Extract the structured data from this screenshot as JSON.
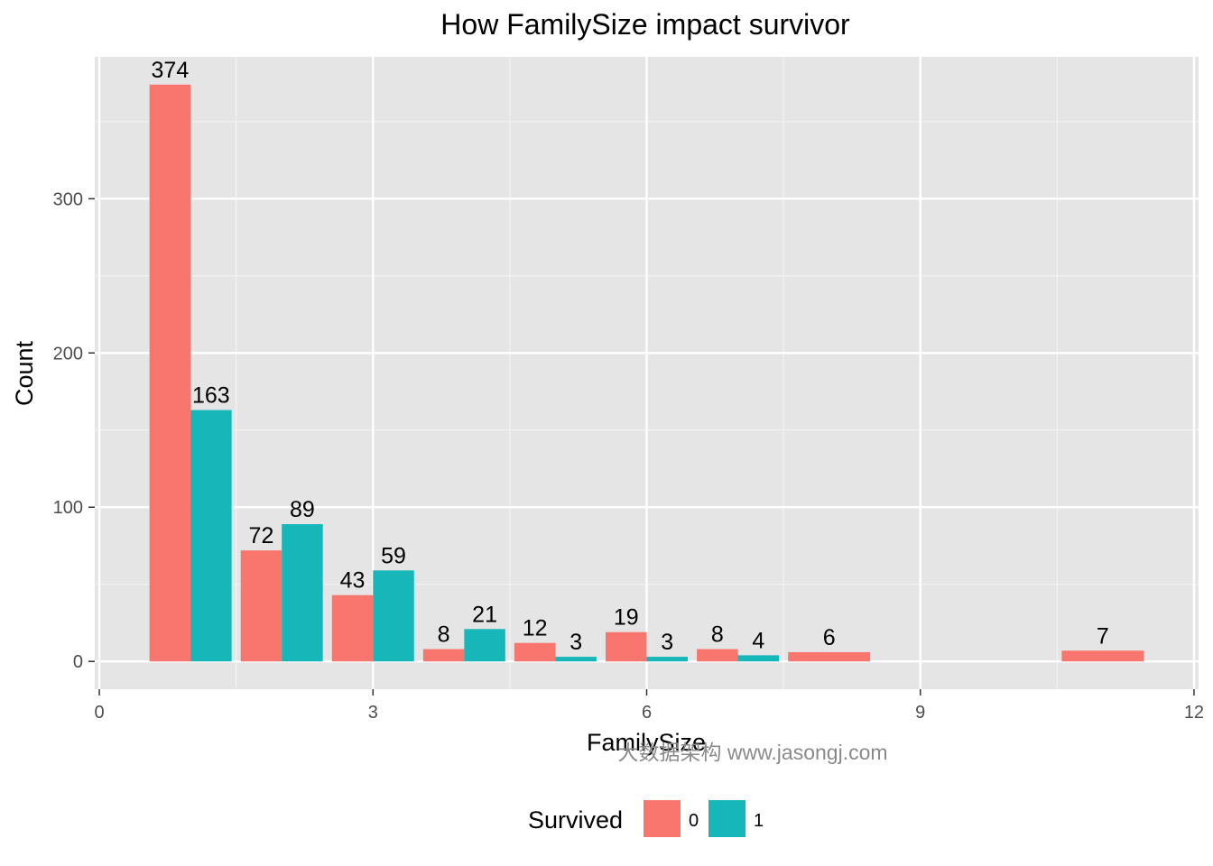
{
  "chart_data": {
    "type": "bar",
    "title": "How FamilySize impact survivor",
    "xlabel": "FamilySize",
    "ylabel": "Count",
    "xlim": [
      -0.05,
      12.05
    ],
    "ylim": [
      -18,
      392
    ],
    "x_ticks": [
      0,
      3,
      6,
      9,
      12
    ],
    "x_tick_labels": [
      "0",
      "3",
      "6",
      "9",
      "12"
    ],
    "y_ticks": [
      0,
      100,
      200,
      300
    ],
    "y_tick_labels": [
      "0",
      "100",
      "200",
      "300"
    ],
    "grid": true,
    "legend_position": "bottom",
    "legend_title": "Survived",
    "series": [
      {
        "name": "0",
        "color": "#F8766D",
        "points": [
          {
            "x": 1,
            "value": 374,
            "label": "374"
          },
          {
            "x": 2,
            "value": 72,
            "label": "72"
          },
          {
            "x": 3,
            "value": 43,
            "label": "43"
          },
          {
            "x": 4,
            "value": 8,
            "label": "8"
          },
          {
            "x": 5,
            "value": 12,
            "label": "12"
          },
          {
            "x": 6,
            "value": 19,
            "label": "19"
          },
          {
            "x": 7,
            "value": 8,
            "label": "8"
          },
          {
            "x": 8,
            "value": 6,
            "label": "6",
            "solo": true
          },
          {
            "x": 11,
            "value": 7,
            "label": "7",
            "solo": true
          }
        ]
      },
      {
        "name": "1",
        "color": "#17B6B9",
        "points": [
          {
            "x": 1,
            "value": 163,
            "label": "163"
          },
          {
            "x": 2,
            "value": 89,
            "label": "89"
          },
          {
            "x": 3,
            "value": 59,
            "label": "59"
          },
          {
            "x": 4,
            "value": 21,
            "label": "21"
          },
          {
            "x": 5,
            "value": 3,
            "label": "3"
          },
          {
            "x": 6,
            "value": 3,
            "label": "3"
          },
          {
            "x": 7,
            "value": 4,
            "label": "4"
          }
        ]
      }
    ],
    "watermark": "大数据架构  www.jasongj.com"
  }
}
